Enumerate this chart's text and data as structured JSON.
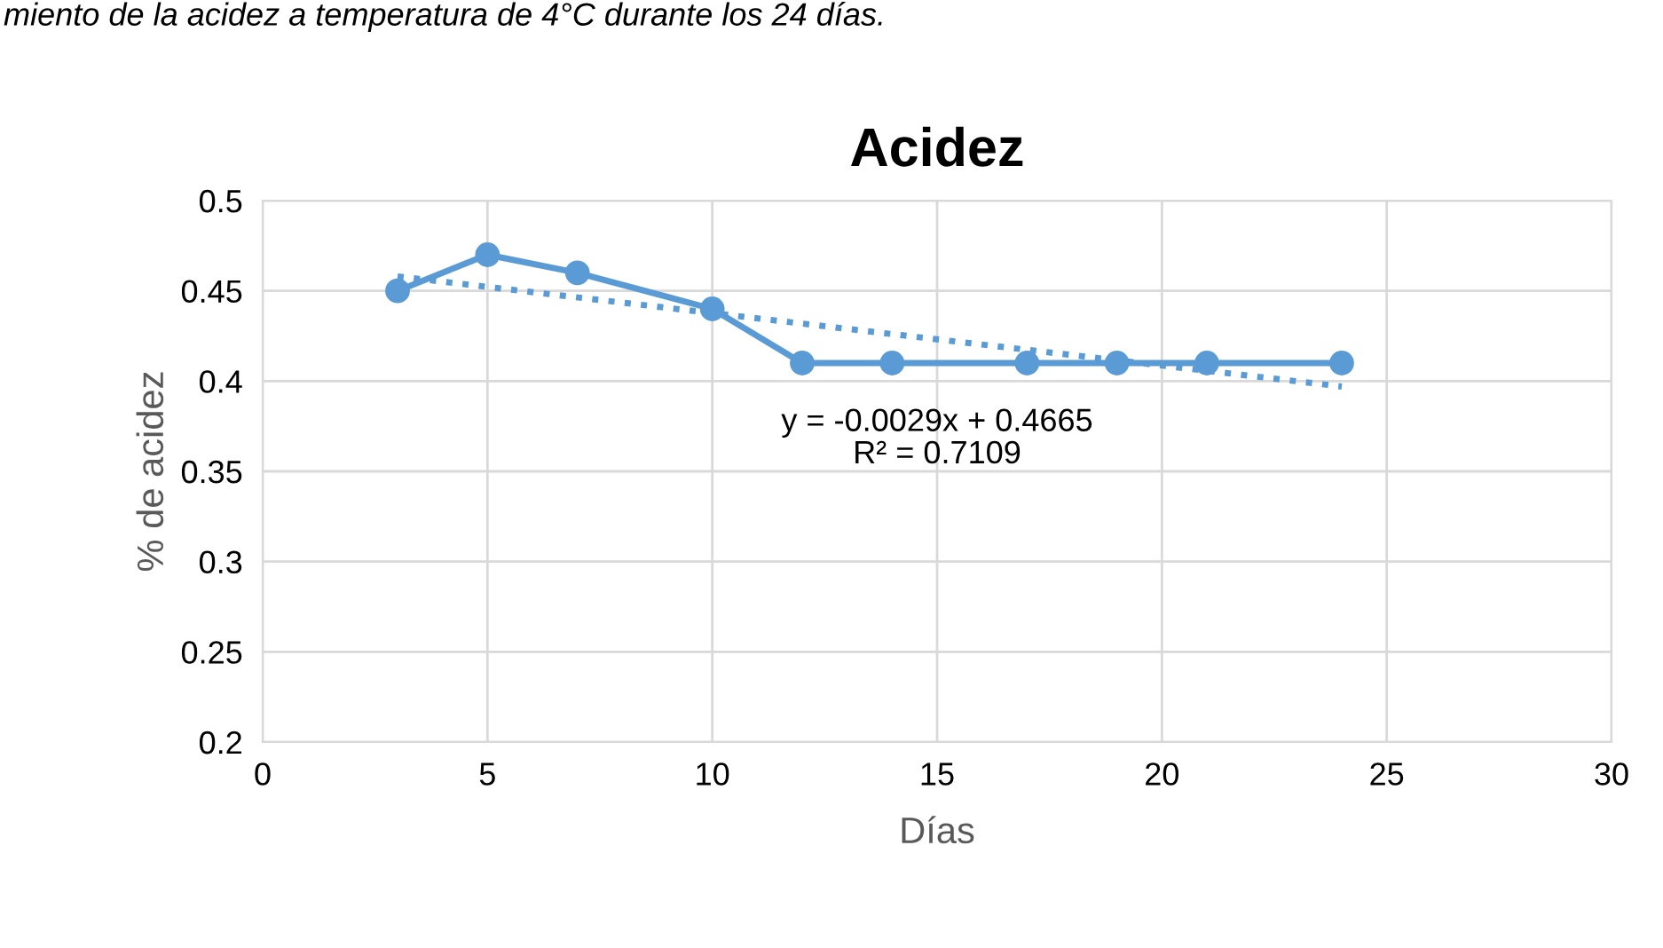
{
  "chart_data": {
    "type": "line",
    "title": "Acidez",
    "xlabel": "Días",
    "ylabel": "% de acidez",
    "xlim": [
      0,
      30
    ],
    "xticks": [
      0,
      5,
      10,
      15,
      20,
      25,
      30
    ],
    "ylim": [
      0.2,
      0.5
    ],
    "yticks": [
      0.2,
      0.25,
      0.3,
      0.35,
      0.4,
      0.45,
      0.5
    ],
    "grid": true,
    "legend": false,
    "series": [
      {
        "color": "#5b9bd5",
        "marker": "circle",
        "line_style": "solid",
        "x": [
          3,
          5,
          7,
          10,
          12,
          14,
          17,
          19,
          21,
          24
        ],
        "values": [
          0.45,
          0.47,
          0.46,
          0.44,
          0.41,
          0.41,
          0.41,
          0.41,
          0.41,
          0.41
        ]
      },
      {
        "color": "#5b9bd5",
        "marker": "none",
        "line_style": "dotted",
        "x": [
          3,
          24
        ],
        "values": [
          0.458,
          0.397
        ]
      }
    ],
    "annotations": [
      "miento de la acidez a temperatura de 4°C durante los 24 días.",
      "y = -0.0029x + 0.4665\nR² = 0.7109"
    ]
  }
}
